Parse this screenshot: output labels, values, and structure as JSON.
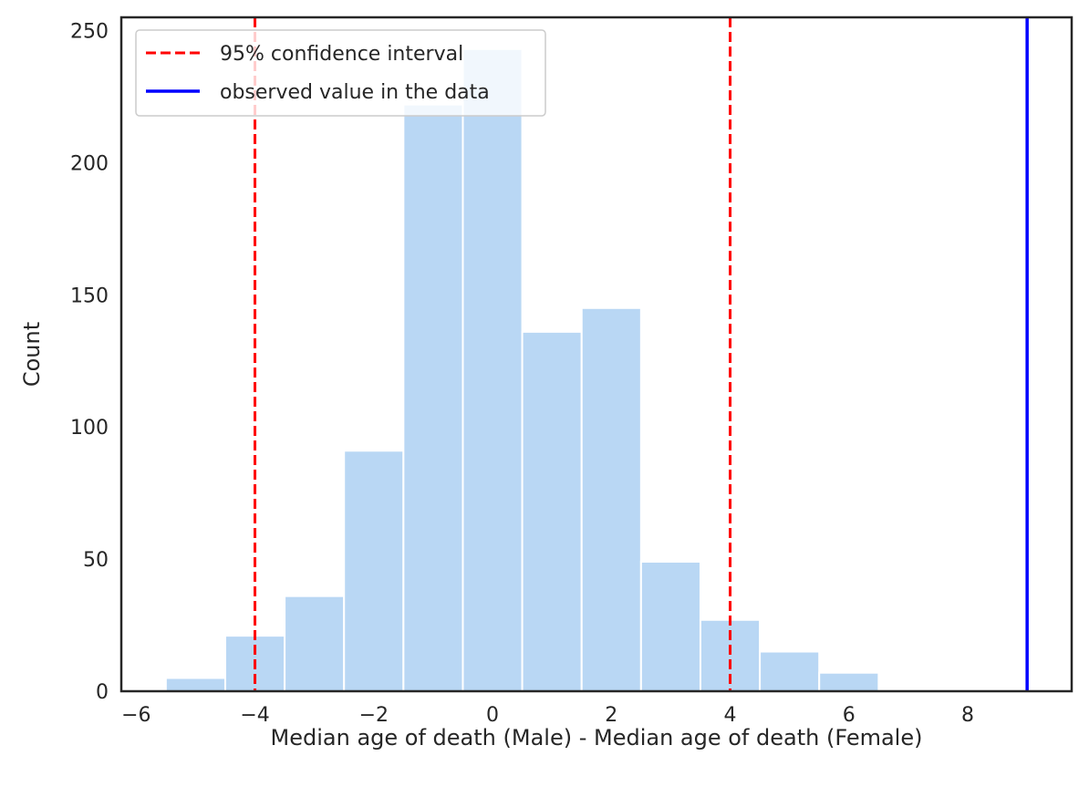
{
  "chart_data": {
    "type": "bar",
    "title": "",
    "xlabel": "Median age of death (Male) - Median age of death (Female)",
    "ylabel": "Count",
    "xlim": [
      -6.25,
      9.75
    ],
    "ylim": [
      0,
      255
    ],
    "grid": false,
    "legend_position": "top-left",
    "xticks": [
      -6,
      -4,
      -2,
      0,
      2,
      4,
      6,
      8
    ],
    "xtick_labels": [
      "−6",
      "−4",
      "−2",
      "0",
      "2",
      "4",
      "6",
      "8"
    ],
    "yticks": [
      0,
      50,
      100,
      150,
      200,
      250
    ],
    "ytick_labels": [
      "0",
      "50",
      "100",
      "150",
      "200",
      "250"
    ],
    "bin_width": 1,
    "bin_left_edges": [
      -5.5,
      -4.5,
      -3.5,
      -2.5,
      -1.5,
      -0.5,
      0.5,
      1.5,
      2.5,
      3.5,
      4.5,
      5.5
    ],
    "counts": [
      5,
      21,
      36,
      91,
      222,
      243,
      136,
      145,
      49,
      27,
      15,
      7
    ],
    "bar_color": "#b9d7f4",
    "reference_lines": [
      {
        "label": "95% confidence interval",
        "x": [
          -4,
          4
        ],
        "color": "#ff0000",
        "style": "dashed"
      },
      {
        "label": "observed value in the data",
        "x": [
          9
        ],
        "color": "#0000ff",
        "style": "solid"
      }
    ],
    "legend": [
      "95% confidence interval",
      "observed value in the data"
    ]
  }
}
